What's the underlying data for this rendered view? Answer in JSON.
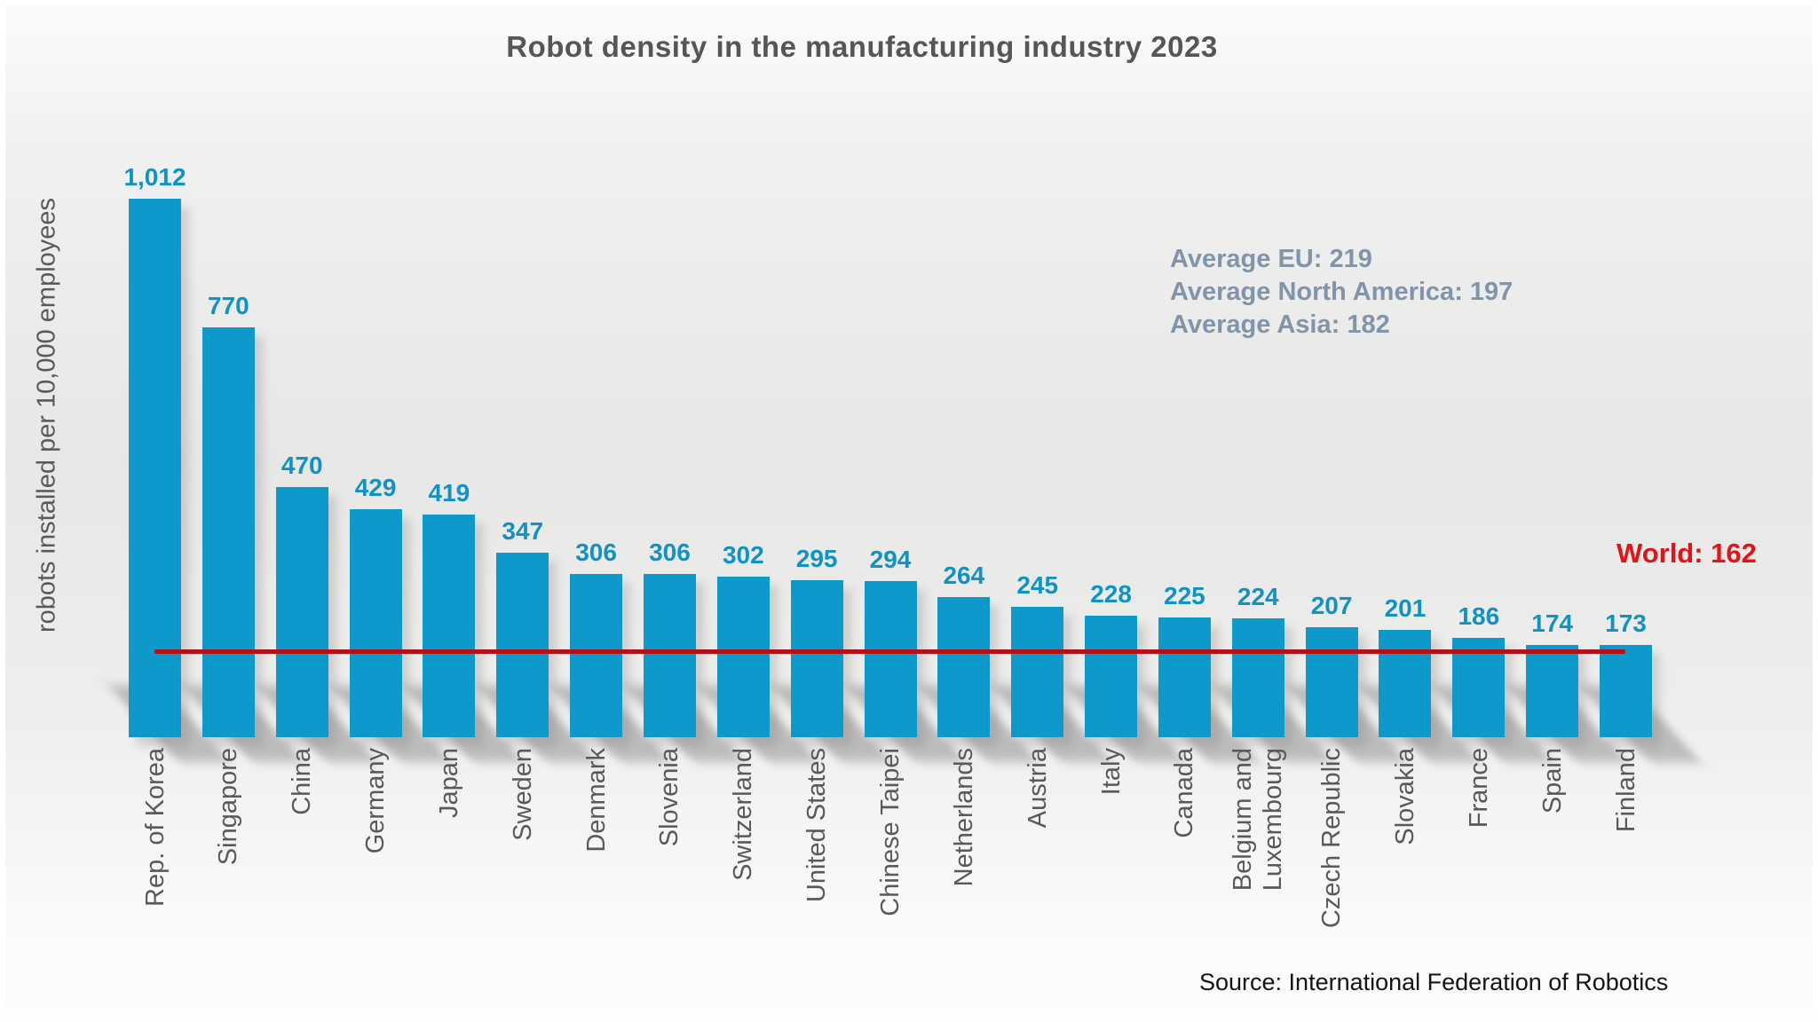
{
  "title": "Robot density in the manufacturing industry 2023",
  "source": "Source: International Federation of Robotics",
  "annotations": [
    "Average EU: 219",
    "Average North America: 197",
    "Average Asia: 182"
  ],
  "world": {
    "label": "World: 162",
    "value": 162
  },
  "colors": {
    "bar": "#0d9acb",
    "value_label": "#0f93c4",
    "title_text": "#565656",
    "axis_text": "#595959",
    "annotation_text": "#8094aa",
    "world_text": "#e51219",
    "world_line": "#b11117"
  },
  "chart_data": {
    "type": "bar",
    "title": "Robot density in the manufacturing industry 2023",
    "xlabel": "",
    "ylabel": "robots installed per 10,000 employees",
    "categories": [
      "Rep. of Korea",
      "Singapore",
      "China",
      "Germany",
      "Japan",
      "Sweden",
      "Denmark",
      "Slovenia",
      "Switzerland",
      "United States",
      "Chinese Taipei",
      "Netherlands",
      "Austria",
      "Italy",
      "Canada",
      "Belgium and\nLuxembourg",
      "Czech Republic",
      "Slovakia",
      "France",
      "Spain",
      "Finland"
    ],
    "values": [
      1012,
      770,
      470,
      429,
      419,
      347,
      306,
      306,
      302,
      295,
      294,
      264,
      245,
      228,
      225,
      224,
      207,
      201,
      186,
      174,
      173
    ],
    "value_labels": [
      "1,012",
      "770",
      "470",
      "429",
      "419",
      "347",
      "306",
      "306",
      "302",
      "295",
      "294",
      "264",
      "245",
      "228",
      "225",
      "224",
      "207",
      "201",
      "186",
      "174",
      "173"
    ],
    "reference_line": {
      "label": "World: 162",
      "value": 162
    },
    "annotations": [
      "Average EU: 219",
      "Average North America: 197",
      "Average Asia: 182"
    ],
    "ylim": [
      0,
      1100
    ],
    "grid": false,
    "legend": false,
    "bar_color": "#0d9acb"
  }
}
